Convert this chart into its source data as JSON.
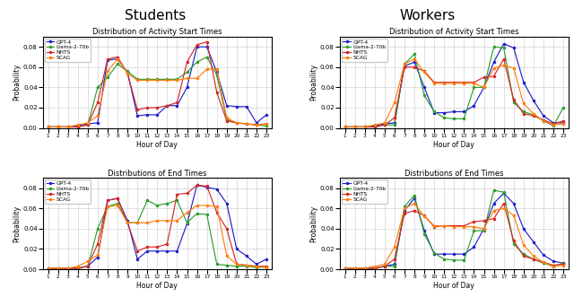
{
  "hours": [
    1,
    2,
    3,
    4,
    5,
    6,
    7,
    8,
    9,
    10,
    11,
    12,
    13,
    14,
    15,
    16,
    17,
    18,
    19,
    20,
    21,
    22,
    23
  ],
  "students_start": {
    "gpt4": [
      0.001,
      0.001,
      0.001,
      0.002,
      0.004,
      0.005,
      0.067,
      0.068,
      0.055,
      0.012,
      0.013,
      0.013,
      0.022,
      0.022,
      0.04,
      0.08,
      0.08,
      0.055,
      0.022,
      0.021,
      0.021,
      0.005,
      0.013
    ],
    "llama": [
      0.001,
      0.001,
      0.001,
      0.001,
      0.003,
      0.04,
      0.05,
      0.063,
      0.056,
      0.048,
      0.048,
      0.048,
      0.048,
      0.048,
      0.055,
      0.065,
      0.07,
      0.052,
      0.008,
      0.005,
      0.004,
      0.003,
      0.002
    ],
    "nhts": [
      0.001,
      0.001,
      0.001,
      0.001,
      0.003,
      0.025,
      0.068,
      0.07,
      0.054,
      0.018,
      0.02,
      0.02,
      0.022,
      0.025,
      0.065,
      0.082,
      0.085,
      0.035,
      0.007,
      0.005,
      0.004,
      0.003,
      0.004
    ],
    "scag": [
      0.001,
      0.001,
      0.001,
      0.003,
      0.005,
      0.012,
      0.056,
      0.068,
      0.054,
      0.047,
      0.047,
      0.047,
      0.047,
      0.047,
      0.049,
      0.049,
      0.058,
      0.058,
      0.01,
      0.005,
      0.004,
      0.003,
      0.004
    ]
  },
  "students_end": {
    "gpt4": [
      0.001,
      0.001,
      0.001,
      0.001,
      0.003,
      0.012,
      0.068,
      0.07,
      0.048,
      0.01,
      0.018,
      0.018,
      0.018,
      0.018,
      0.045,
      0.083,
      0.081,
      0.079,
      0.065,
      0.02,
      0.013,
      0.005,
      0.01
    ],
    "llama": [
      0.001,
      0.001,
      0.001,
      0.001,
      0.003,
      0.04,
      0.062,
      0.065,
      0.046,
      0.046,
      0.068,
      0.063,
      0.065,
      0.068,
      0.046,
      0.055,
      0.054,
      0.005,
      0.004,
      0.003,
      0.003,
      0.002,
      0.002
    ],
    "nhts": [
      0.001,
      0.001,
      0.001,
      0.001,
      0.003,
      0.025,
      0.068,
      0.07,
      0.046,
      0.018,
      0.022,
      0.022,
      0.025,
      0.074,
      0.075,
      0.083,
      0.082,
      0.056,
      0.04,
      0.005,
      0.004,
      0.003,
      0.003
    ],
    "scag": [
      0.001,
      0.001,
      0.001,
      0.003,
      0.008,
      0.014,
      0.062,
      0.063,
      0.046,
      0.046,
      0.046,
      0.048,
      0.048,
      0.048,
      0.056,
      0.063,
      0.063,
      0.062,
      0.013,
      0.005,
      0.004,
      0.003,
      0.002
    ]
  },
  "workers_start": {
    "gpt4": [
      0.001,
      0.001,
      0.001,
      0.002,
      0.004,
      0.005,
      0.061,
      0.065,
      0.04,
      0.015,
      0.015,
      0.016,
      0.016,
      0.022,
      0.04,
      0.065,
      0.083,
      0.079,
      0.045,
      0.027,
      0.012,
      0.005,
      0.005
    ],
    "llama": [
      0.001,
      0.001,
      0.001,
      0.001,
      0.003,
      0.003,
      0.063,
      0.073,
      0.032,
      0.016,
      0.01,
      0.009,
      0.009,
      0.04,
      0.04,
      0.08,
      0.079,
      0.025,
      0.016,
      0.013,
      0.007,
      0.002,
      0.02
    ],
    "nhts": [
      0.001,
      0.001,
      0.001,
      0.001,
      0.003,
      0.01,
      0.06,
      0.06,
      0.056,
      0.045,
      0.045,
      0.045,
      0.045,
      0.045,
      0.05,
      0.051,
      0.068,
      0.028,
      0.014,
      0.012,
      0.008,
      0.004,
      0.007
    ],
    "scag": [
      0.001,
      0.001,
      0.001,
      0.003,
      0.005,
      0.025,
      0.063,
      0.068,
      0.055,
      0.044,
      0.044,
      0.044,
      0.044,
      0.044,
      0.04,
      0.059,
      0.062,
      0.059,
      0.024,
      0.014,
      0.007,
      0.003,
      0.004
    ]
  },
  "workers_end": {
    "gpt4": [
      0.001,
      0.001,
      0.001,
      0.001,
      0.003,
      0.005,
      0.058,
      0.07,
      0.038,
      0.015,
      0.015,
      0.015,
      0.015,
      0.022,
      0.04,
      0.065,
      0.075,
      0.065,
      0.04,
      0.027,
      0.014,
      0.008,
      0.006
    ],
    "llama": [
      0.001,
      0.001,
      0.001,
      0.001,
      0.003,
      0.003,
      0.062,
      0.073,
      0.035,
      0.016,
      0.01,
      0.009,
      0.009,
      0.038,
      0.038,
      0.078,
      0.076,
      0.025,
      0.015,
      0.01,
      0.006,
      0.003,
      0.006
    ],
    "nhts": [
      0.001,
      0.001,
      0.001,
      0.001,
      0.003,
      0.01,
      0.055,
      0.058,
      0.053,
      0.042,
      0.043,
      0.043,
      0.043,
      0.047,
      0.048,
      0.05,
      0.065,
      0.028,
      0.013,
      0.01,
      0.007,
      0.004,
      0.005
    ],
    "scag": [
      0.001,
      0.001,
      0.001,
      0.003,
      0.005,
      0.022,
      0.06,
      0.065,
      0.052,
      0.043,
      0.043,
      0.042,
      0.042,
      0.042,
      0.04,
      0.058,
      0.06,
      0.053,
      0.024,
      0.013,
      0.007,
      0.003,
      0.004
    ]
  },
  "colors": {
    "gpt4": "#1f1fcc",
    "llama": "#2ca02c",
    "nhts": "#d62728",
    "scag": "#ff7f0e"
  },
  "labels": {
    "gpt4": "GPT-4",
    "llama": "Llama-2-70b",
    "nhts": "NHTS",
    "scag": "SCAG"
  },
  "col_titles": [
    "Students",
    "Workers"
  ],
  "row_titles": [
    "Distribution of Activity Start Times",
    "Distributions of End Times"
  ],
  "ylabel": "Probability",
  "xlabel": "Hour of Day",
  "ylim": [
    0.0,
    0.09
  ],
  "yticks": [
    0.0,
    0.02,
    0.04,
    0.06,
    0.08
  ]
}
